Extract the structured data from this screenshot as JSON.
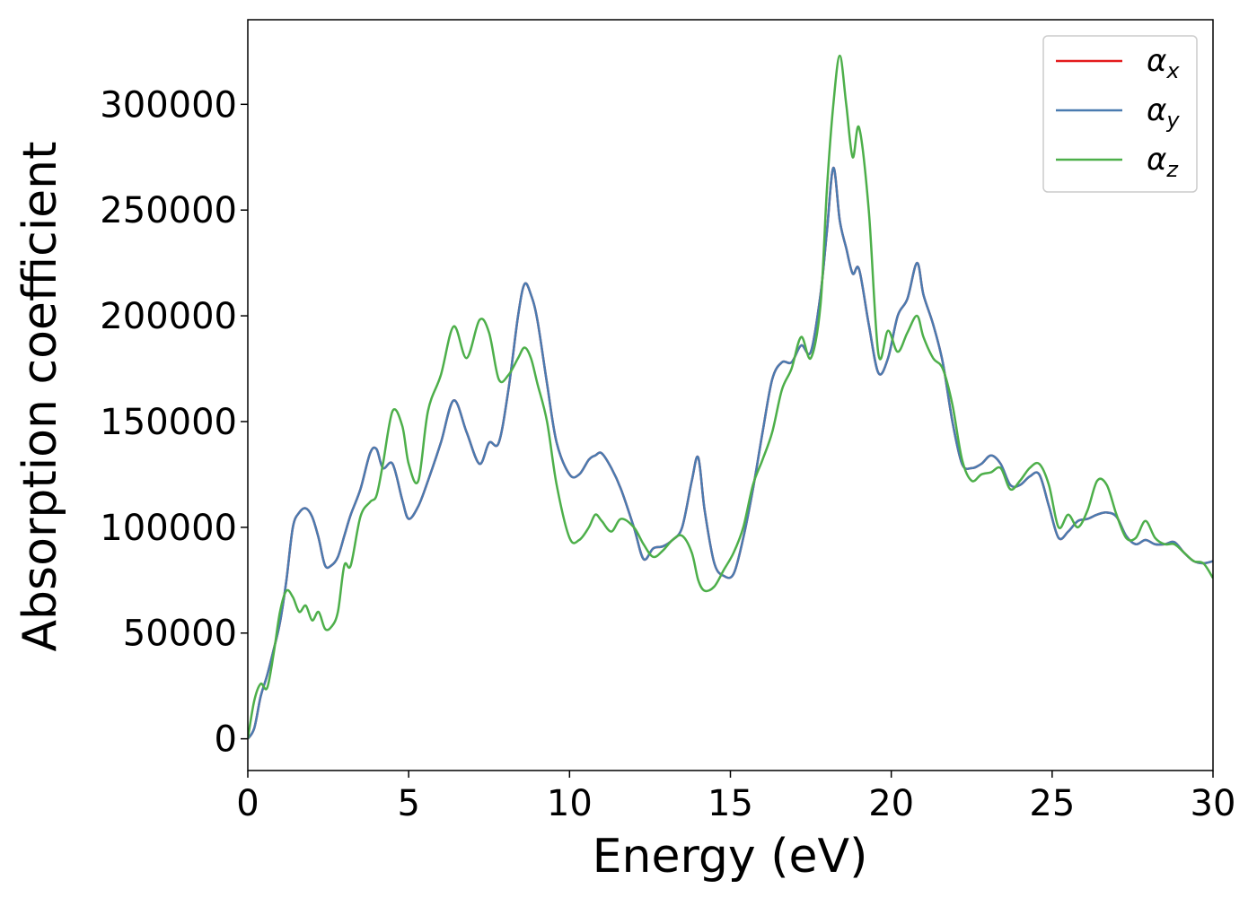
{
  "chart_data": {
    "type": "line",
    "title": "",
    "xlabel": "Energy (eV)",
    "ylabel": "Absorption coefficient",
    "xlim": [
      0,
      30
    ],
    "ylim": [
      -15000,
      340000
    ],
    "xticks": [
      0,
      5,
      10,
      15,
      20,
      25,
      30
    ],
    "yticks": [
      0,
      50000,
      100000,
      150000,
      200000,
      250000,
      300000
    ],
    "xtick_labels": [
      "0",
      "5",
      "10",
      "15",
      "20",
      "25",
      "30"
    ],
    "ytick_labels": [
      "0",
      "50000",
      "100000",
      "150000",
      "200000",
      "250000",
      "300000"
    ],
    "grid": false,
    "legend_position": "top-right",
    "series": [
      {
        "name": "α_x",
        "legend_symbol": "α",
        "legend_subscript": "x",
        "color": "#e41a1c",
        "x": [
          0,
          0.2,
          0.4,
          0.6,
          0.8,
          1.0,
          1.2,
          1.4,
          1.6,
          1.8,
          2.0,
          2.2,
          2.4,
          2.6,
          2.8,
          3.0,
          3.2,
          3.5,
          3.8,
          4.0,
          4.2,
          4.5,
          4.8,
          5.0,
          5.3,
          5.6,
          6.0,
          6.4,
          6.8,
          7.2,
          7.5,
          7.8,
          8.1,
          8.4,
          8.6,
          8.8,
          9.0,
          9.3,
          9.6,
          10.0,
          10.3,
          10.6,
          10.8,
          11.0,
          11.3,
          11.6,
          12.0,
          12.3,
          12.6,
          12.9,
          13.2,
          13.5,
          13.8,
          14.0,
          14.2,
          14.5,
          14.8,
          15.1,
          15.4,
          15.7,
          16.0,
          16.3,
          16.6,
          16.9,
          17.2,
          17.5,
          17.8,
          18.0,
          18.2,
          18.4,
          18.6,
          18.8,
          19.0,
          19.3,
          19.6,
          19.9,
          20.2,
          20.5,
          20.8,
          21.0,
          21.3,
          21.6,
          21.9,
          22.2,
          22.5,
          22.8,
          23.1,
          23.4,
          23.7,
          24.0,
          24.3,
          24.6,
          24.9,
          25.2,
          25.5,
          25.8,
          26.1,
          26.4,
          26.7,
          27.0,
          27.3,
          27.6,
          27.9,
          28.2,
          28.5,
          28.8,
          29.1,
          29.4,
          29.7,
          30.0
        ],
        "values": [
          0,
          5000,
          20000,
          30000,
          42000,
          55000,
          75000,
          100000,
          107000,
          109000,
          105000,
          95000,
          82000,
          82000,
          86000,
          96000,
          106000,
          118000,
          135000,
          137000,
          128000,
          130000,
          113000,
          104000,
          110000,
          122000,
          140000,
          160000,
          145000,
          130000,
          140000,
          140000,
          165000,
          200000,
          215000,
          210000,
          198000,
          168000,
          140000,
          125000,
          125000,
          132000,
          134000,
          135000,
          128000,
          118000,
          100000,
          85000,
          90000,
          91000,
          94000,
          100000,
          122000,
          133000,
          108000,
          83000,
          77000,
          78000,
          95000,
          118000,
          145000,
          170000,
          178000,
          178000,
          186000,
          183000,
          210000,
          240000,
          270000,
          245000,
          232000,
          220000,
          222000,
          196000,
          173000,
          180000,
          200000,
          208000,
          225000,
          210000,
          196000,
          178000,
          150000,
          130000,
          128000,
          130000,
          134000,
          130000,
          120000,
          120000,
          124000,
          125000,
          110000,
          95000,
          98000,
          103000,
          104000,
          106000,
          107000,
          105000,
          96000,
          92000,
          94000,
          92000,
          92000,
          93000,
          88000,
          84000,
          83000,
          84000
        ]
      },
      {
        "name": "α_y",
        "legend_symbol": "α",
        "legend_subscript": "y",
        "color": "#4a7bb0",
        "x": [
          0,
          0.2,
          0.4,
          0.6,
          0.8,
          1.0,
          1.2,
          1.4,
          1.6,
          1.8,
          2.0,
          2.2,
          2.4,
          2.6,
          2.8,
          3.0,
          3.2,
          3.5,
          3.8,
          4.0,
          4.2,
          4.5,
          4.8,
          5.0,
          5.3,
          5.6,
          6.0,
          6.4,
          6.8,
          7.2,
          7.5,
          7.8,
          8.1,
          8.4,
          8.6,
          8.8,
          9.0,
          9.3,
          9.6,
          10.0,
          10.3,
          10.6,
          10.8,
          11.0,
          11.3,
          11.6,
          12.0,
          12.3,
          12.6,
          12.9,
          13.2,
          13.5,
          13.8,
          14.0,
          14.2,
          14.5,
          14.8,
          15.1,
          15.4,
          15.7,
          16.0,
          16.3,
          16.6,
          16.9,
          17.2,
          17.5,
          17.8,
          18.0,
          18.2,
          18.4,
          18.6,
          18.8,
          19.0,
          19.3,
          19.6,
          19.9,
          20.2,
          20.5,
          20.8,
          21.0,
          21.3,
          21.6,
          21.9,
          22.2,
          22.5,
          22.8,
          23.1,
          23.4,
          23.7,
          24.0,
          24.3,
          24.6,
          24.9,
          25.2,
          25.5,
          25.8,
          26.1,
          26.4,
          26.7,
          27.0,
          27.3,
          27.6,
          27.9,
          28.2,
          28.5,
          28.8,
          29.1,
          29.4,
          29.7,
          30.0
        ],
        "values": [
          0,
          5000,
          20000,
          30000,
          42000,
          55000,
          75000,
          100000,
          107000,
          109000,
          105000,
          95000,
          82000,
          82000,
          86000,
          96000,
          106000,
          118000,
          135000,
          137000,
          128000,
          130000,
          113000,
          104000,
          110000,
          122000,
          140000,
          160000,
          145000,
          130000,
          140000,
          140000,
          165000,
          200000,
          215000,
          210000,
          198000,
          168000,
          140000,
          125000,
          125000,
          132000,
          134000,
          135000,
          128000,
          118000,
          100000,
          85000,
          90000,
          91000,
          94000,
          100000,
          122000,
          133000,
          108000,
          83000,
          77000,
          78000,
          95000,
          118000,
          145000,
          170000,
          178000,
          178000,
          186000,
          183000,
          210000,
          240000,
          270000,
          245000,
          232000,
          220000,
          222000,
          196000,
          173000,
          180000,
          200000,
          208000,
          225000,
          210000,
          196000,
          178000,
          150000,
          130000,
          128000,
          130000,
          134000,
          130000,
          120000,
          120000,
          124000,
          125000,
          110000,
          95000,
          98000,
          103000,
          104000,
          106000,
          107000,
          105000,
          96000,
          92000,
          94000,
          92000,
          92000,
          93000,
          88000,
          84000,
          83000,
          84000
        ]
      },
      {
        "name": "α_z",
        "legend_symbol": "α",
        "legend_subscript": "z",
        "color": "#4daf4a",
        "x": [
          0,
          0.2,
          0.4,
          0.6,
          0.8,
          1.0,
          1.2,
          1.4,
          1.6,
          1.8,
          2.0,
          2.2,
          2.4,
          2.6,
          2.8,
          3.0,
          3.2,
          3.5,
          3.8,
          4.0,
          4.2,
          4.5,
          4.8,
          5.0,
          5.3,
          5.6,
          6.0,
          6.4,
          6.8,
          7.2,
          7.5,
          7.8,
          8.1,
          8.4,
          8.6,
          8.8,
          9.0,
          9.3,
          9.6,
          10.0,
          10.3,
          10.6,
          10.8,
          11.0,
          11.3,
          11.6,
          12.0,
          12.3,
          12.6,
          12.9,
          13.2,
          13.5,
          13.8,
          14.0,
          14.2,
          14.5,
          14.8,
          15.1,
          15.4,
          15.7,
          16.0,
          16.3,
          16.6,
          16.9,
          17.2,
          17.5,
          17.8,
          18.0,
          18.2,
          18.4,
          18.6,
          18.8,
          19.0,
          19.3,
          19.6,
          19.9,
          20.2,
          20.5,
          20.8,
          21.0,
          21.3,
          21.6,
          21.9,
          22.2,
          22.5,
          22.8,
          23.1,
          23.4,
          23.7,
          24.0,
          24.3,
          24.6,
          24.9,
          25.2,
          25.5,
          25.8,
          26.1,
          26.4,
          26.7,
          27.0,
          27.3,
          27.6,
          27.9,
          28.2,
          28.5,
          28.8,
          29.1,
          29.4,
          29.7,
          30.0
        ],
        "values": [
          0,
          18000,
          26000,
          24000,
          40000,
          60000,
          70000,
          67000,
          60000,
          63000,
          56000,
          60000,
          52000,
          53000,
          60000,
          82000,
          82000,
          105000,
          112000,
          115000,
          130000,
          155000,
          148000,
          130000,
          122000,
          155000,
          172000,
          195000,
          180000,
          198000,
          192000,
          170000,
          172000,
          180000,
          185000,
          180000,
          168000,
          150000,
          120000,
          95000,
          94000,
          100000,
          106000,
          103000,
          98000,
          104000,
          100000,
          92000,
          86000,
          89000,
          94000,
          96000,
          88000,
          75000,
          70000,
          72000,
          80000,
          88000,
          100000,
          120000,
          132000,
          145000,
          165000,
          175000,
          190000,
          180000,
          205000,
          260000,
          300000,
          323000,
          300000,
          275000,
          289000,
          250000,
          182000,
          193000,
          183000,
          192000,
          200000,
          190000,
          180000,
          175000,
          158000,
          132000,
          122000,
          125000,
          126000,
          128000,
          118000,
          122000,
          128000,
          130000,
          120000,
          100000,
          106000,
          100000,
          108000,
          122000,
          120000,
          106000,
          95000,
          95000,
          103000,
          95000,
          92000,
          92000,
          88000,
          84000,
          83000,
          76000
        ]
      }
    ]
  }
}
